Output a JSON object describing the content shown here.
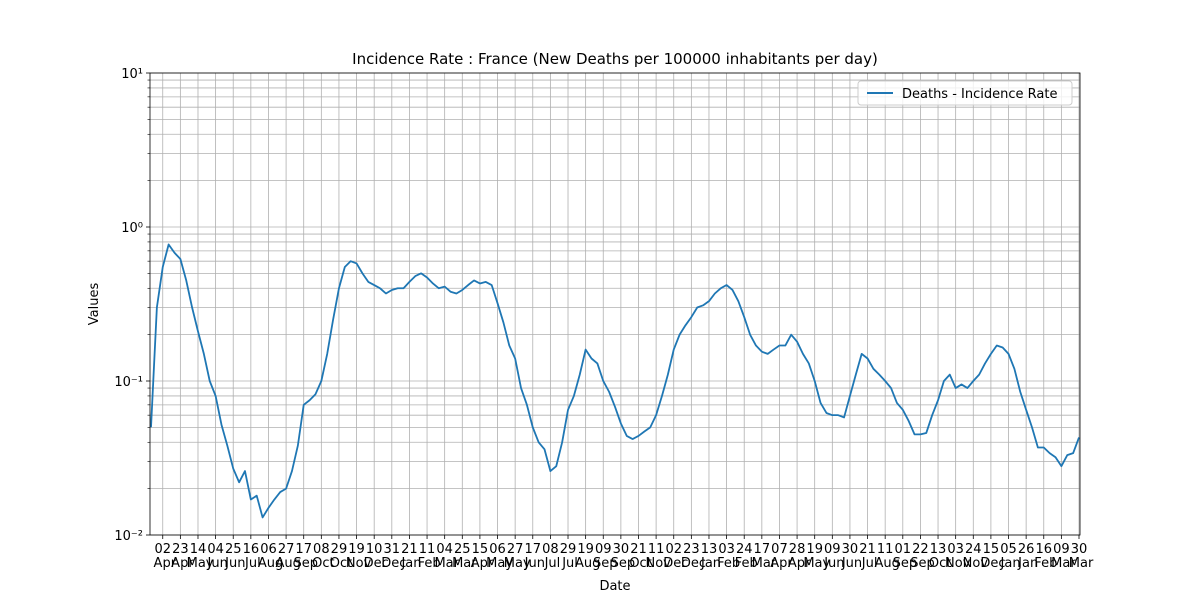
{
  "chart_data": {
    "type": "line",
    "title": "Incidence Rate : France  (New Deaths per 100000 inhabitants per day)",
    "xlabel": "Date",
    "ylabel": "Values",
    "categories": [
      null,
      null,
      "02 Apr",
      null,
      null,
      "23 Apr",
      null,
      null,
      "14 May",
      null,
      null,
      "04 Jun",
      null,
      null,
      "25 Jun",
      null,
      null,
      "16 Jul",
      null,
      null,
      "06 Aug",
      null,
      null,
      "27 Aug",
      null,
      null,
      "17 Sep",
      null,
      null,
      "08 Oct",
      null,
      null,
      "29 Oct",
      null,
      null,
      "19 Nov",
      null,
      null,
      "10 Dec",
      null,
      null,
      "31 Dec",
      null,
      null,
      "21 Jan",
      null,
      null,
      "11 Feb",
      null,
      null,
      "04 Mar",
      null,
      null,
      "25 Mar",
      null,
      null,
      "15 Apr",
      null,
      null,
      "06 May",
      null,
      null,
      "27 May",
      null,
      null,
      "17 Jun",
      null,
      null,
      "08 Jul",
      null,
      null,
      "29 Jul",
      null,
      null,
      "19 Aug",
      null,
      null,
      "09 Sep",
      null,
      null,
      "30 Sep",
      null,
      null,
      "21 Oct",
      null,
      null,
      "11 Nov",
      null,
      null,
      "02 Dec",
      null,
      null,
      "23 Dec",
      null,
      null,
      "13 Jan",
      null,
      null,
      "03 Feb",
      null,
      null,
      "24 Feb",
      null,
      null,
      "17 Mar",
      null,
      null,
      "07 Apr",
      null,
      null,
      "28 Apr",
      null,
      null,
      "19 May",
      null,
      null,
      "09 Jun",
      null,
      null,
      "30 Jun",
      null,
      null,
      "21 Jul",
      null,
      null,
      "11 Aug",
      null,
      null,
      "01 Sep",
      null,
      null,
      "22 Sep",
      null,
      null,
      "13 Oct",
      null,
      null,
      "03 Nov",
      null,
      null,
      "24 Nov",
      null,
      null,
      "15 Dec",
      null,
      null,
      "05 Jan",
      null,
      null,
      "26 Jan",
      null,
      null,
      "16 Feb",
      null,
      null,
      "09 Mar",
      null,
      null,
      "30 Mar"
    ],
    "series": [
      {
        "name": "Deaths - Incidence Rate",
        "color": "#1f77b4",
        "values": [
          0.05,
          0.3,
          0.55,
          0.77,
          0.68,
          0.62,
          0.45,
          0.3,
          0.21,
          0.15,
          0.1,
          0.08,
          0.052,
          0.038,
          0.027,
          0.022,
          0.026,
          0.017,
          0.018,
          0.013,
          0.015,
          0.017,
          0.019,
          0.02,
          0.026,
          0.038,
          0.07,
          0.075,
          0.082,
          0.1,
          0.15,
          0.25,
          0.4,
          0.55,
          0.6,
          0.58,
          0.5,
          0.44,
          0.42,
          0.4,
          0.37,
          0.39,
          0.4,
          0.4,
          0.44,
          0.48,
          0.5,
          0.47,
          0.43,
          0.4,
          0.41,
          0.38,
          0.37,
          0.39,
          0.42,
          0.45,
          0.43,
          0.44,
          0.42,
          0.32,
          0.24,
          0.17,
          0.14,
          0.09,
          0.07,
          0.05,
          0.04,
          0.036,
          0.026,
          0.028,
          0.04,
          0.065,
          0.08,
          0.11,
          0.16,
          0.14,
          0.13,
          0.1,
          0.085,
          0.068,
          0.053,
          0.044,
          0.042,
          0.044,
          0.047,
          0.05,
          0.06,
          0.08,
          0.11,
          0.16,
          0.2,
          0.23,
          0.26,
          0.3,
          0.31,
          0.33,
          0.37,
          0.4,
          0.42,
          0.39,
          0.33,
          0.26,
          0.2,
          0.17,
          0.155,
          0.15,
          0.16,
          0.17,
          0.17,
          0.2,
          0.18,
          0.15,
          0.13,
          0.1,
          0.072,
          0.062,
          0.06,
          0.06,
          0.058,
          0.08,
          0.11,
          0.15,
          0.14,
          0.12,
          0.11,
          0.1,
          0.09,
          0.072,
          0.065,
          0.055,
          0.045,
          0.045,
          0.046,
          0.06,
          0.075,
          0.1,
          0.11,
          0.09,
          0.095,
          0.09,
          0.1,
          0.11,
          0.13,
          0.15,
          0.17,
          0.165,
          0.15,
          0.12,
          0.085,
          0.065,
          0.05,
          0.037,
          0.037,
          0.034,
          0.032,
          0.028,
          0.033,
          0.034,
          0.043
        ]
      }
    ],
    "ylim": [
      0.01,
      10
    ],
    "log_y": true,
    "yticks": [
      {
        "value": 0.01,
        "label": "10⁻²"
      },
      {
        "value": 0.1,
        "label": "10⁻¹"
      },
      {
        "value": 1,
        "label": "10⁰"
      },
      {
        "value": 10,
        "label": "10¹"
      }
    ],
    "yminorticks": [
      0.02,
      0.03,
      0.04,
      0.05,
      0.06,
      0.07,
      0.08,
      0.09,
      0.2,
      0.3,
      0.4,
      0.5,
      0.6,
      0.7,
      0.8,
      0.9,
      2,
      3,
      4,
      5,
      6,
      7,
      8,
      9
    ],
    "grid": true,
    "legend": "upper right"
  }
}
